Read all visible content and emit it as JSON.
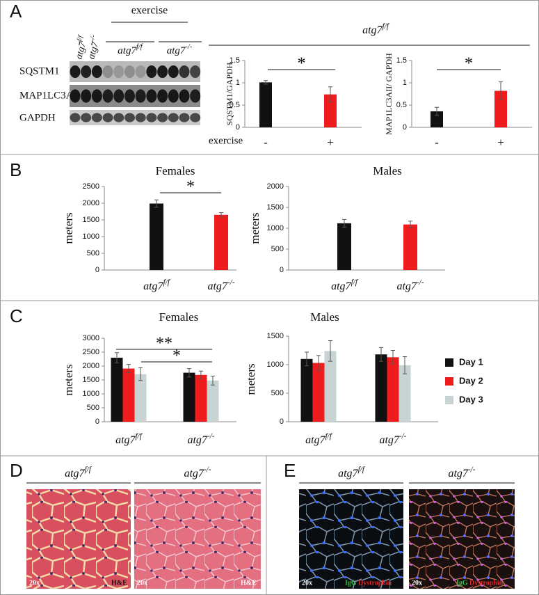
{
  "panel_labels": [
    "A",
    "B",
    "C",
    "D",
    "E"
  ],
  "blot": {
    "lane_groups": [
      "atg7f/f",
      "atg7-/-"
    ],
    "treatment": "exercise",
    "exercise_groups": [
      "atg7f/f",
      "atg7-/-"
    ],
    "rows": [
      "SQSTM1",
      "MAP1LC3A",
      "GAPDH"
    ]
  },
  "panel_a_group": "atg7f/f",
  "panel_a_xlabel": "exercise",
  "chart_data": [
    {
      "type": "bar",
      "ylabel": "SQSTM1/GAPDH",
      "categories": [
        "-",
        "+"
      ],
      "values": [
        1.01,
        0.74
      ],
      "errors": [
        0.04,
        0.17
      ],
      "colors": [
        "#111111",
        "#ee1c1c"
      ],
      "ylim": [
        0,
        1.5
      ],
      "yticks": [
        0,
        0.5,
        1,
        1.5
      ],
      "annotations": [
        "*"
      ]
    },
    {
      "type": "bar",
      "ylabel": "MAP1LC3AII/ GAPDH",
      "categories": [
        "-",
        "+"
      ],
      "values": [
        0.36,
        0.82
      ],
      "errors": [
        0.09,
        0.2
      ],
      "colors": [
        "#111111",
        "#ee1c1c"
      ],
      "ylim": [
        0,
        1.5
      ],
      "yticks": [
        0,
        0.5,
        1,
        1.5
      ],
      "annotations": [
        "*"
      ]
    },
    {
      "type": "bar",
      "title": "Females",
      "ylabel": "meters",
      "categories": [
        "atg7f/f",
        "atg7-/-"
      ],
      "values": [
        1990,
        1650
      ],
      "errors": [
        110,
        70
      ],
      "colors": [
        "#111111",
        "#ee1c1c"
      ],
      "ylim": [
        0,
        2500
      ],
      "yticks": [
        0,
        500,
        1000,
        1500,
        2000,
        2500
      ],
      "annotations": [
        "*"
      ]
    },
    {
      "type": "bar",
      "title": "Males",
      "ylabel": "meters",
      "categories": [
        "atg7f/f",
        "atg7-/-"
      ],
      "values": [
        1120,
        1090
      ],
      "errors": [
        90,
        80
      ],
      "colors": [
        "#111111",
        "#ee1c1c"
      ],
      "ylim": [
        0,
        2000
      ],
      "yticks": [
        0,
        500,
        1000,
        1500,
        2000
      ]
    },
    {
      "type": "grouped_bar",
      "title": "Females",
      "ylabel": "meters",
      "categories": [
        "atg7f/f",
        "atg7-/-"
      ],
      "ylim": [
        0,
        3000
      ],
      "yticks": [
        0,
        500,
        1000,
        1500,
        2000,
        2500,
        3000
      ],
      "annotations": [
        "**",
        "*"
      ],
      "series": [
        {
          "color": "#111111",
          "values": [
            2300,
            1760
          ],
          "errors": [
            180,
            150
          ]
        },
        {
          "color": "#ee1c1c",
          "values": [
            1910,
            1680
          ],
          "errors": [
            150,
            140
          ]
        },
        {
          "color": "#c8d3d3",
          "values": [
            1710,
            1480
          ],
          "errors": [
            230,
            160
          ]
        }
      ]
    },
    {
      "type": "grouped_bar",
      "title": "Males",
      "ylabel": "meters",
      "categories": [
        "atg7f/f",
        "atg7-/-"
      ],
      "ylim": [
        0,
        1500
      ],
      "yticks": [
        0,
        500,
        1000,
        1500
      ],
      "legend": "right",
      "series": [
        {
          "name": "Day 1",
          "color": "#111111",
          "values": [
            1100,
            1180
          ],
          "errors": [
            120,
            120
          ]
        },
        {
          "name": "Day 2",
          "color": "#ee1c1c",
          "values": [
            1030,
            1130
          ],
          "errors": [
            130,
            120
          ]
        },
        {
          "name": "Day 3",
          "color": "#c8d3d3",
          "values": [
            1240,
            990
          ],
          "errors": [
            180,
            150
          ]
        }
      ]
    }
  ],
  "histology": {
    "groups": [
      "atg7f/f",
      "atg7-/-"
    ],
    "magnification": "20x",
    "stain": "H&E"
  },
  "immunofluorescence": {
    "groups": [
      "atg7f/f",
      "atg7-/-"
    ],
    "magnification": "20x",
    "stains": [
      "IgG",
      "Dystrophin"
    ]
  }
}
